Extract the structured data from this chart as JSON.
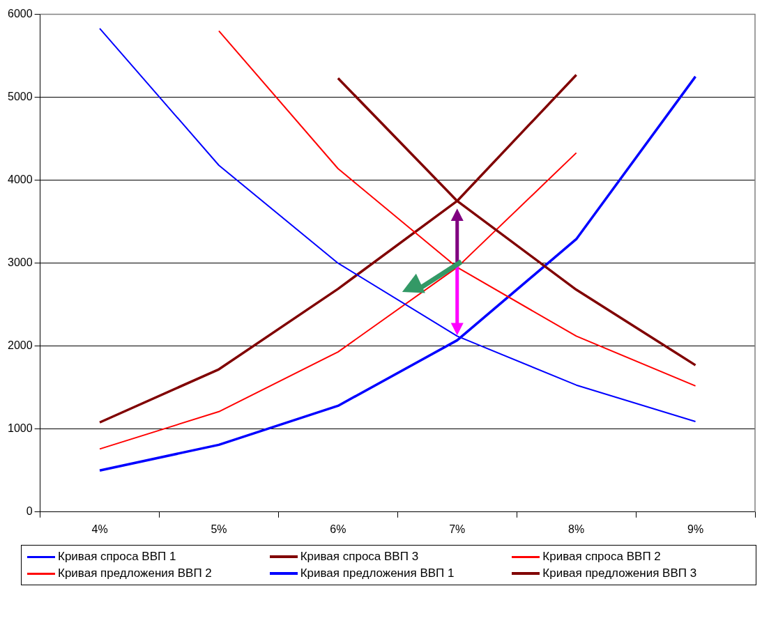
{
  "chart_data": {
    "type": "line",
    "categories": [
      "4%",
      "5%",
      "6%",
      "7%",
      "8%",
      "9%"
    ],
    "series": [
      {
        "name": "Кривая спроса ВВП 1",
        "color": "#0000ff",
        "values": [
          5830,
          4180,
          3000,
          2120,
          1530,
          1090
        ]
      },
      {
        "name": "Кривая спроса ВВП 3",
        "color": "#800000",
        "values": [
          null,
          null,
          5230,
          3750,
          2680,
          1770
        ]
      },
      {
        "name": "Кривая спроса ВВП 2",
        "color": "#ff0000",
        "values": [
          null,
          5800,
          4140,
          2950,
          2120,
          1520
        ]
      },
      {
        "name": "Кривая предложения ВВП 2",
        "color": "#ff0000",
        "values": [
          760,
          1210,
          1930,
          2950,
          4330,
          null
        ]
      },
      {
        "name": "Кривая предложения ВВП 1",
        "color": "#0000ff",
        "values": [
          500,
          810,
          1280,
          2070,
          3290,
          5250
        ]
      },
      {
        "name": "Кривая предложения ВВП 3",
        "color": "#800000",
        "values": [
          1080,
          1720,
          2690,
          3750,
          5270,
          null
        ]
      }
    ],
    "ylim": [
      0,
      6000
    ],
    "yticks": [
      0,
      1000,
      2000,
      3000,
      4000,
      5000,
      6000
    ],
    "grid": "y",
    "legend": "bottom",
    "marker": "none",
    "line_style": "solid"
  }
}
